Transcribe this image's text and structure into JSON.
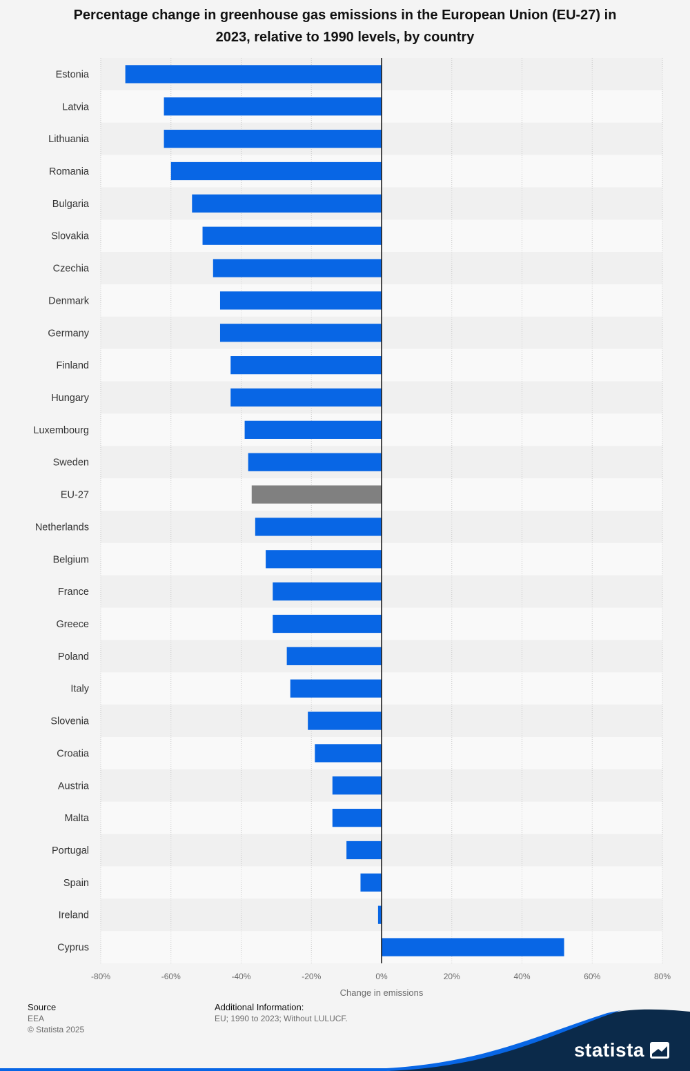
{
  "chart_data": {
    "type": "bar",
    "orientation": "horizontal",
    "title": "Percentage change in greenhouse gas emissions in the European Union (EU-27) in 2023, relative to 1990 levels, by country",
    "xlabel": "Change in emissions",
    "ylabel": "",
    "xlim": [
      -80,
      80
    ],
    "xticks": [
      -80,
      -60,
      -40,
      -20,
      0,
      20,
      40,
      60,
      80
    ],
    "xtick_labels": [
      "-80%",
      "-60%",
      "-40%",
      "-20%",
      "0%",
      "20%",
      "40%",
      "60%",
      "80%"
    ],
    "grid": true,
    "categories": [
      "Estonia",
      "Latvia",
      "Lithuania",
      "Romania",
      "Bulgaria",
      "Slovakia",
      "Czechia",
      "Denmark",
      "Germany",
      "Finland",
      "Hungary",
      "Luxembourg",
      "Sweden",
      "EU-27",
      "Netherlands",
      "Belgium",
      "France",
      "Greece",
      "Poland",
      "Italy",
      "Slovenia",
      "Croatia",
      "Austria",
      "Malta",
      "Portugal",
      "Spain",
      "Ireland",
      "Cyprus"
    ],
    "values": [
      -73,
      -62,
      -62,
      -60,
      -54,
      -51,
      -48,
      -46,
      -46,
      -43,
      -43,
      -39,
      -38,
      -37,
      -36,
      -33,
      -31,
      -31,
      -27,
      -26,
      -21,
      -19,
      -14,
      -14,
      -10,
      -6,
      -1,
      52
    ],
    "highlight": "EU-27",
    "colors": {
      "bar": "#0866e5",
      "highlight_bar": "#808080",
      "zero_line": "#111111"
    }
  },
  "footer": {
    "source_heading": "Source",
    "source_name": "EEA",
    "copyright": "© Statista 2025",
    "additional_heading": "Additional Information:",
    "additional_text": "EU; 1990 to 2023; Without LULUCF."
  },
  "brand": {
    "name": "statista",
    "icon": "statista-logo-icon",
    "color": "#0b2a4a"
  }
}
